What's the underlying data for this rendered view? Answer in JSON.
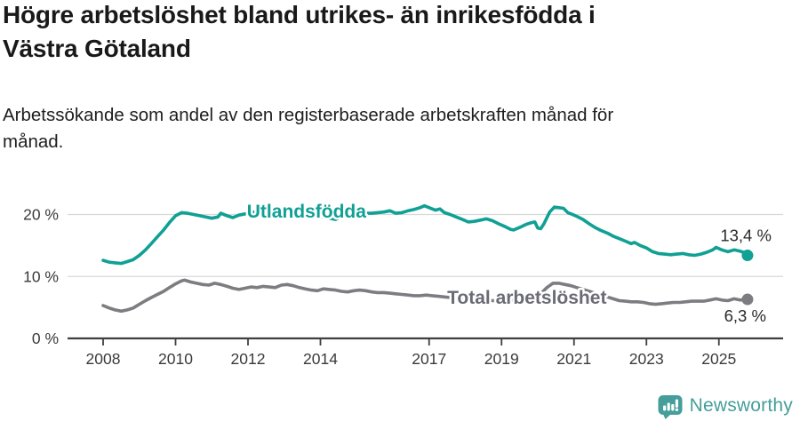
{
  "header": {
    "title_lines": [
      "Högre arbetslöshet bland utrikes- än inrikesfödda i",
      "Västra Götaland"
    ],
    "subtitle_lines": [
      "Arbetssökande som andel av den registerbaserade arbetskraften månad för",
      "månad."
    ]
  },
  "footer": {
    "brand_label": "Newsworthy",
    "logo_icon": "bar-chart-exclamation-speech-bubble-icon"
  },
  "colors": {
    "foreign_born_line": "#10a094",
    "total_line": "#7d7d81",
    "total_label_text": "#6b6b76",
    "grid": "#d8d8d8",
    "axis": "#3f3f3f",
    "tick_text": "#3a3a3a",
    "end_value_text": "#2a2a2a",
    "brand_teal": "#459e9b",
    "label_halo": "#ffffff"
  },
  "chart_data": {
    "type": "line",
    "title": "Högre arbetslöshet bland utrikes- än inrikesfödda i Västra Götaland",
    "subtitle": "Arbetssökande som andel av den registerbaserade arbetskraften månad för månad.",
    "x_unit": "decimal_year",
    "xlim": [
      2007.9,
      2026.2
    ],
    "ylim": [
      0,
      23
    ],
    "grid": "horizontal",
    "legend_position": "inline-labels",
    "yticks": [
      {
        "value": 0,
        "label": "0 %"
      },
      {
        "value": 10,
        "label": "10 %"
      },
      {
        "value": 20,
        "label": "20 %"
      }
    ],
    "xticks": [
      {
        "value": 2008,
        "label": "2008"
      },
      {
        "value": 2010,
        "label": "2010"
      },
      {
        "value": 2012,
        "label": "2012"
      },
      {
        "value": 2014,
        "label": "2014"
      },
      {
        "value": 2017,
        "label": "2017"
      },
      {
        "value": 2019,
        "label": "2019"
      },
      {
        "value": 2021,
        "label": "2021"
      },
      {
        "value": 2023,
        "label": "2023"
      },
      {
        "value": 2025,
        "label": "2025"
      }
    ],
    "series": [
      {
        "name": "Utlandsfödda",
        "slug": "utlandsfodda",
        "color_key": "foreign_born_line",
        "label_color_key": "foreign_born_line",
        "end_value_label": "13,4 %",
        "end_label_side": "above",
        "label_pos": [
          2011.97,
          19.5
        ],
        "points": [
          [
            2008.0,
            12.6
          ],
          [
            2008.17,
            12.3
          ],
          [
            2008.33,
            12.2
          ],
          [
            2008.5,
            12.1
          ],
          [
            2008.67,
            12.4
          ],
          [
            2008.83,
            12.7
          ],
          [
            2009.0,
            13.4
          ],
          [
            2009.17,
            14.3
          ],
          [
            2009.33,
            15.3
          ],
          [
            2009.5,
            16.4
          ],
          [
            2009.67,
            17.5
          ],
          [
            2009.83,
            18.7
          ],
          [
            2010.0,
            19.8
          ],
          [
            2010.17,
            20.3
          ],
          [
            2010.33,
            20.2
          ],
          [
            2010.5,
            20.0
          ],
          [
            2010.67,
            19.8
          ],
          [
            2010.83,
            19.6
          ],
          [
            2011.0,
            19.4
          ],
          [
            2011.17,
            19.6
          ],
          [
            2011.25,
            20.2
          ],
          [
            2011.42,
            19.8
          ],
          [
            2011.58,
            19.5
          ],
          [
            2011.75,
            19.9
          ],
          [
            2011.92,
            20.1
          ],
          [
            2012.08,
            20.3
          ],
          [
            2012.25,
            20.5
          ],
          [
            2012.42,
            20.4
          ],
          [
            2012.58,
            20.5
          ],
          [
            2012.75,
            20.7
          ],
          [
            2012.92,
            20.9
          ],
          [
            2013.08,
            21.0
          ],
          [
            2013.25,
            20.8
          ],
          [
            2013.42,
            20.6
          ],
          [
            2013.58,
            20.3
          ],
          [
            2013.75,
            20.1
          ],
          [
            2013.92,
            19.8
          ],
          [
            2014.08,
            19.6
          ],
          [
            2014.25,
            19.4
          ],
          [
            2014.42,
            19.2
          ],
          [
            2014.58,
            19.6
          ],
          [
            2014.75,
            19.8
          ],
          [
            2014.92,
            20.0
          ],
          [
            2015.08,
            20.1
          ],
          [
            2015.25,
            20.2
          ],
          [
            2015.42,
            20.2
          ],
          [
            2015.58,
            20.3
          ],
          [
            2015.75,
            20.4
          ],
          [
            2015.92,
            20.6
          ],
          [
            2016.08,
            20.2
          ],
          [
            2016.25,
            20.3
          ],
          [
            2016.42,
            20.6
          ],
          [
            2016.58,
            20.8
          ],
          [
            2016.75,
            21.1
          ],
          [
            2016.87,
            21.4
          ],
          [
            2017.0,
            21.1
          ],
          [
            2017.17,
            20.7
          ],
          [
            2017.3,
            20.9
          ],
          [
            2017.42,
            20.3
          ],
          [
            2017.58,
            20.0
          ],
          [
            2017.75,
            19.6
          ],
          [
            2017.92,
            19.2
          ],
          [
            2018.08,
            18.8
          ],
          [
            2018.25,
            18.9
          ],
          [
            2018.42,
            19.1
          ],
          [
            2018.58,
            19.3
          ],
          [
            2018.75,
            19.0
          ],
          [
            2018.92,
            18.5
          ],
          [
            2019.08,
            18.1
          ],
          [
            2019.25,
            17.6
          ],
          [
            2019.33,
            17.5
          ],
          [
            2019.5,
            17.9
          ],
          [
            2019.67,
            18.4
          ],
          [
            2019.83,
            18.7
          ],
          [
            2019.92,
            18.8
          ],
          [
            2020.0,
            17.8
          ],
          [
            2020.08,
            17.7
          ],
          [
            2020.17,
            18.5
          ],
          [
            2020.33,
            20.4
          ],
          [
            2020.46,
            21.2
          ],
          [
            2020.58,
            21.1
          ],
          [
            2020.71,
            21.0
          ],
          [
            2020.83,
            20.3
          ],
          [
            2020.92,
            20.1
          ],
          [
            2021.08,
            19.7
          ],
          [
            2021.25,
            19.2
          ],
          [
            2021.42,
            18.5
          ],
          [
            2021.58,
            17.9
          ],
          [
            2021.75,
            17.4
          ],
          [
            2021.92,
            17.0
          ],
          [
            2022.08,
            16.5
          ],
          [
            2022.25,
            16.1
          ],
          [
            2022.42,
            15.7
          ],
          [
            2022.58,
            15.3
          ],
          [
            2022.67,
            15.5
          ],
          [
            2022.83,
            15.0
          ],
          [
            2023.0,
            14.6
          ],
          [
            2023.17,
            14.0
          ],
          [
            2023.33,
            13.7
          ],
          [
            2023.5,
            13.6
          ],
          [
            2023.67,
            13.5
          ],
          [
            2023.83,
            13.6
          ],
          [
            2024.0,
            13.7
          ],
          [
            2024.17,
            13.5
          ],
          [
            2024.33,
            13.4
          ],
          [
            2024.5,
            13.6
          ],
          [
            2024.67,
            13.9
          ],
          [
            2024.83,
            14.3
          ],
          [
            2024.92,
            14.7
          ],
          [
            2025.08,
            14.3
          ],
          [
            2025.25,
            14.0
          ],
          [
            2025.42,
            14.3
          ],
          [
            2025.58,
            14.1
          ],
          [
            2025.67,
            13.9
          ],
          [
            2025.79,
            13.4
          ]
        ]
      },
      {
        "name": "Total arbetslöshet",
        "slug": "total-arbetsloshet",
        "color_key": "total_line",
        "label_color_key": "total_label_text",
        "end_value_label": "6,3 %",
        "end_label_side": "below",
        "label_pos": [
          2017.5,
          5.6
        ],
        "points": [
          [
            2008.0,
            5.3
          ],
          [
            2008.17,
            4.9
          ],
          [
            2008.33,
            4.6
          ],
          [
            2008.5,
            4.4
          ],
          [
            2008.67,
            4.6
          ],
          [
            2008.83,
            4.9
          ],
          [
            2009.0,
            5.5
          ],
          [
            2009.17,
            6.1
          ],
          [
            2009.33,
            6.6
          ],
          [
            2009.5,
            7.1
          ],
          [
            2009.67,
            7.6
          ],
          [
            2009.83,
            8.2
          ],
          [
            2010.0,
            8.8
          ],
          [
            2010.17,
            9.3
          ],
          [
            2010.25,
            9.4
          ],
          [
            2010.42,
            9.1
          ],
          [
            2010.58,
            8.9
          ],
          [
            2010.75,
            8.7
          ],
          [
            2010.92,
            8.6
          ],
          [
            2011.08,
            8.9
          ],
          [
            2011.25,
            8.7
          ],
          [
            2011.42,
            8.4
          ],
          [
            2011.58,
            8.1
          ],
          [
            2011.75,
            7.9
          ],
          [
            2011.92,
            8.1
          ],
          [
            2012.08,
            8.3
          ],
          [
            2012.25,
            8.2
          ],
          [
            2012.42,
            8.4
          ],
          [
            2012.58,
            8.3
          ],
          [
            2012.75,
            8.2
          ],
          [
            2012.92,
            8.6
          ],
          [
            2013.08,
            8.7
          ],
          [
            2013.25,
            8.5
          ],
          [
            2013.42,
            8.2
          ],
          [
            2013.58,
            8.0
          ],
          [
            2013.75,
            7.8
          ],
          [
            2013.92,
            7.7
          ],
          [
            2014.08,
            8.0
          ],
          [
            2014.25,
            7.9
          ],
          [
            2014.42,
            7.8
          ],
          [
            2014.58,
            7.6
          ],
          [
            2014.75,
            7.5
          ],
          [
            2014.92,
            7.7
          ],
          [
            2015.08,
            7.8
          ],
          [
            2015.25,
            7.7
          ],
          [
            2015.42,
            7.5
          ],
          [
            2015.58,
            7.4
          ],
          [
            2015.75,
            7.4
          ],
          [
            2015.92,
            7.3
          ],
          [
            2016.08,
            7.2
          ],
          [
            2016.25,
            7.1
          ],
          [
            2016.42,
            7.0
          ],
          [
            2016.58,
            6.9
          ],
          [
            2016.75,
            6.9
          ],
          [
            2016.92,
            7.0
          ],
          [
            2017.08,
            6.9
          ],
          [
            2017.25,
            6.8
          ],
          [
            2017.42,
            6.7
          ],
          [
            2017.58,
            6.6
          ],
          [
            2017.75,
            6.5
          ],
          [
            2017.92,
            6.4
          ],
          [
            2018.08,
            6.4
          ],
          [
            2018.25,
            6.3
          ],
          [
            2018.42,
            6.2
          ],
          [
            2018.58,
            6.1
          ],
          [
            2018.75,
            6.1
          ],
          [
            2018.92,
            6.1
          ],
          [
            2019.08,
            6.1
          ],
          [
            2019.25,
            6.2
          ],
          [
            2019.42,
            6.2
          ],
          [
            2019.58,
            6.3
          ],
          [
            2019.75,
            6.5
          ],
          [
            2019.92,
            6.7
          ],
          [
            2020.08,
            7.2
          ],
          [
            2020.25,
            8.2
          ],
          [
            2020.42,
            8.9
          ],
          [
            2020.58,
            8.9
          ],
          [
            2020.75,
            8.7
          ],
          [
            2020.92,
            8.5
          ],
          [
            2021.08,
            8.2
          ],
          [
            2021.25,
            7.9
          ],
          [
            2021.42,
            7.6
          ],
          [
            2021.58,
            7.3
          ],
          [
            2021.75,
            7.0
          ],
          [
            2021.92,
            6.7
          ],
          [
            2022.08,
            6.4
          ],
          [
            2022.25,
            6.1
          ],
          [
            2022.42,
            6.0
          ],
          [
            2022.58,
            5.9
          ],
          [
            2022.75,
            5.9
          ],
          [
            2022.92,
            5.8
          ],
          [
            2023.08,
            5.6
          ],
          [
            2023.25,
            5.5
          ],
          [
            2023.42,
            5.6
          ],
          [
            2023.58,
            5.7
          ],
          [
            2023.75,
            5.8
          ],
          [
            2023.92,
            5.8
          ],
          [
            2024.08,
            5.9
          ],
          [
            2024.25,
            6.0
          ],
          [
            2024.42,
            6.0
          ],
          [
            2024.58,
            6.0
          ],
          [
            2024.75,
            6.2
          ],
          [
            2024.92,
            6.4
          ],
          [
            2025.08,
            6.2
          ],
          [
            2025.25,
            6.1
          ],
          [
            2025.42,
            6.4
          ],
          [
            2025.58,
            6.2
          ],
          [
            2025.79,
            6.3
          ]
        ]
      }
    ]
  }
}
